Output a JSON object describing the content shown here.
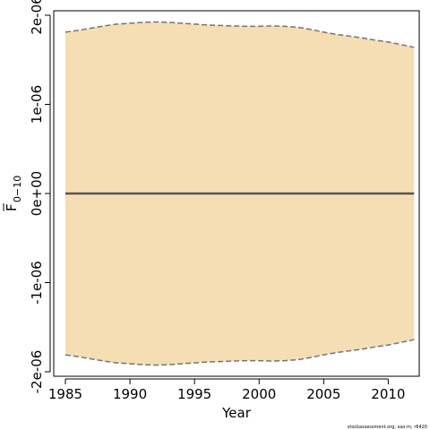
{
  "chart_data": {
    "type": "area",
    "xlabel": "Year",
    "ylabel_main": "F",
    "ylabel_sub": "0−10",
    "xlim": [
      1984.1,
      2012.4
    ],
    "ylim": [
      -2.05e-06,
      2.05e-06
    ],
    "x_ticks": [
      1985,
      1990,
      1995,
      2000,
      2005,
      2010
    ],
    "x_tick_labels": [
      "1985",
      "1990",
      "1995",
      "2000",
      "2005",
      "2010"
    ],
    "y_ticks": [
      -2e-06,
      -1e-06,
      0,
      1e-06,
      2e-06
    ],
    "y_tick_labels": [
      "-2e-06",
      "-1e-06",
      "0e+00",
      "1e-06",
      "2e-06"
    ],
    "grid": false,
    "colors": {
      "band_fill": "#f5deb3",
      "band_edge": "#757575",
      "estimate_line": "#555555"
    },
    "x": [
      1985,
      1986,
      1987,
      1988,
      1989,
      1990,
      1991,
      1992,
      1993,
      1994,
      1995,
      1996,
      1997,
      1998,
      1999,
      2000,
      2001,
      2002,
      2003,
      2004,
      2005,
      2006,
      2007,
      2008,
      2009,
      2010,
      2011,
      2012
    ],
    "series": [
      {
        "role": "estimate",
        "values": [
          0,
          0,
          0,
          0,
          0,
          0,
          0,
          0,
          0,
          0,
          0,
          0,
          0,
          0,
          0,
          0,
          0,
          0,
          0,
          0,
          0,
          0,
          0,
          0,
          0,
          0,
          0,
          0
        ]
      },
      {
        "role": "upper",
        "values": [
          1.81e-06,
          1.83e-06,
          1.855e-06,
          1.88e-06,
          1.9e-06,
          1.91e-06,
          1.92e-06,
          1.925e-06,
          1.92e-06,
          1.91e-06,
          1.9e-06,
          1.89e-06,
          1.885e-06,
          1.88e-06,
          1.875e-06,
          1.875e-06,
          1.88e-06,
          1.875e-06,
          1.865e-06,
          1.84e-06,
          1.81e-06,
          1.785e-06,
          1.765e-06,
          1.745e-06,
          1.72e-06,
          1.7e-06,
          1.67e-06,
          1.64e-06
        ]
      },
      {
        "role": "lower",
        "values": [
          -1.81e-06,
          -1.83e-06,
          -1.855e-06,
          -1.88e-06,
          -1.9e-06,
          -1.91e-06,
          -1.92e-06,
          -1.925e-06,
          -1.92e-06,
          -1.91e-06,
          -1.9e-06,
          -1.89e-06,
          -1.885e-06,
          -1.88e-06,
          -1.875e-06,
          -1.875e-06,
          -1.88e-06,
          -1.875e-06,
          -1.865e-06,
          -1.84e-06,
          -1.81e-06,
          -1.785e-06,
          -1.765e-06,
          -1.745e-06,
          -1.72e-06,
          -1.7e-06,
          -1.67e-06,
          -1.64e-06
        ]
      }
    ]
  },
  "footnote": "stockassessment.org, sao-m, r6420"
}
